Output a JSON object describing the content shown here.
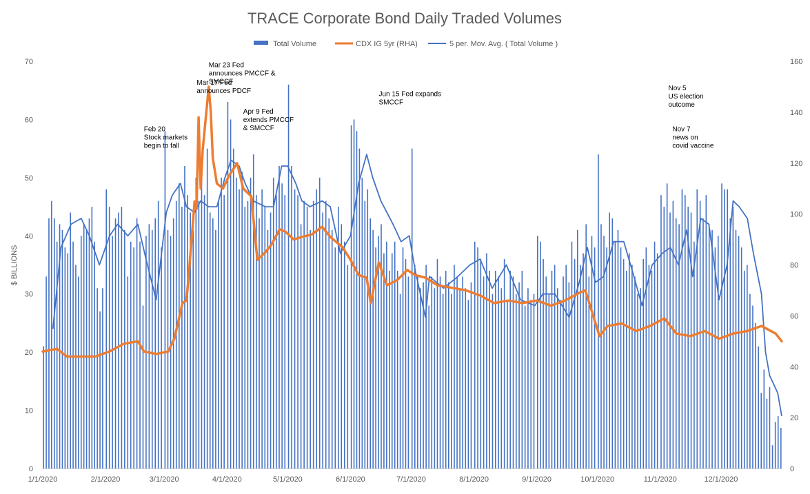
{
  "chart_data": {
    "type": "bar",
    "title": "TRACE Corporate Bond Daily Traded Volumes",
    "ylabel": "$ BILLIONS",
    "ylim": [
      0,
      70
    ],
    "y_ticks": [
      "0",
      "10",
      "20",
      "30",
      "40",
      "50",
      "60",
      "70"
    ],
    "y2lim": [
      0,
      160
    ],
    "y2_ticks": [
      "0",
      "20",
      "40",
      "60",
      "80",
      "100",
      "120",
      "140",
      "160"
    ],
    "x_ticks": [
      "1/1/2020",
      "2/1/2020",
      "3/1/2020",
      "4/1/2020",
      "5/1/2020",
      "6/1/2020",
      "7/1/2020",
      "8/1/2020",
      "9/1/2020",
      "10/1/2020",
      "11/1/2020",
      "12/1/2020"
    ],
    "x_range": [
      "2020-01-01",
      "2020-12-31"
    ],
    "grid": false,
    "legend_position": "top",
    "colors": {
      "bars": "#4472C4",
      "cdx": "#ED7D31",
      "mov_avg": "#4472C4"
    },
    "series": [
      {
        "name": "Total Volume",
        "type": "bar",
        "axis": "left",
        "monthly_values": [
          [
            21,
            33,
            43,
            46,
            43,
            39,
            42,
            41,
            38,
            37,
            44,
            39,
            35,
            33,
            40,
            42,
            41,
            43,
            45,
            39,
            31,
            27,
            31
          ],
          [
            48,
            45,
            40,
            43,
            44,
            45,
            41,
            33,
            39,
            38,
            43,
            39,
            28,
            40,
            42,
            41,
            43,
            46,
            38
          ],
          [
            58,
            41,
            40,
            43,
            46,
            49,
            45,
            52,
            47,
            44,
            41,
            50,
            46,
            52,
            47,
            55,
            44,
            43,
            41,
            46,
            50,
            47
          ],
          [
            63,
            60,
            55,
            50,
            48,
            51,
            45,
            46,
            50,
            54,
            47,
            43,
            48,
            45,
            41,
            44,
            50,
            47,
            52,
            49,
            47
          ],
          [
            66,
            52,
            48,
            47,
            42,
            46,
            45,
            41,
            46,
            48,
            50,
            44,
            46,
            43,
            41,
            38,
            45,
            42,
            39,
            35
          ],
          [
            59,
            60,
            58,
            55,
            50,
            46,
            48,
            43,
            41,
            38,
            40,
            42,
            37,
            39,
            34,
            37,
            39,
            34,
            30,
            38,
            36,
            33
          ],
          [
            55,
            35,
            33,
            31,
            32,
            35,
            28,
            33,
            31,
            36,
            33,
            30,
            34,
            32,
            30,
            35,
            33,
            31,
            33,
            31,
            29,
            32
          ],
          [
            39,
            38,
            36,
            33,
            37,
            34,
            30,
            34,
            33,
            31,
            36,
            29,
            34,
            33,
            30,
            32,
            34,
            28,
            31,
            29,
            30
          ],
          [
            40,
            39,
            36,
            33,
            30,
            34,
            35,
            31,
            29,
            33,
            35,
            32,
            39,
            36,
            41,
            35,
            37,
            42,
            33,
            40,
            38
          ],
          [
            54,
            42,
            40,
            38,
            44,
            43,
            39,
            41,
            38,
            36,
            34,
            37,
            35,
            33,
            30,
            31,
            36,
            38,
            35,
            34,
            39,
            37
          ],
          [
            47,
            45,
            49,
            44,
            46,
            43,
            42,
            48,
            47,
            45,
            44,
            39,
            48,
            46,
            43,
            47,
            42,
            41,
            38,
            40
          ],
          [
            49,
            48,
            48,
            43,
            45,
            41,
            40,
            38,
            34,
            35,
            30,
            28,
            25,
            21,
            13,
            17,
            12,
            14,
            4,
            8,
            9,
            7
          ]
        ]
      },
      {
        "name": "CDX IG 5yr (RHA)",
        "type": "line",
        "axis": "right",
        "points": [
          [
            "2020-01-01",
            46
          ],
          [
            "2020-01-08",
            47
          ],
          [
            "2020-01-13",
            44
          ],
          [
            "2020-01-20",
            44
          ],
          [
            "2020-01-27",
            44
          ],
          [
            "2020-02-03",
            46
          ],
          [
            "2020-02-10",
            49
          ],
          [
            "2020-02-17",
            50
          ],
          [
            "2020-02-20",
            46
          ],
          [
            "2020-02-26",
            45
          ],
          [
            "2020-03-03",
            46
          ],
          [
            "2020-03-06",
            51
          ],
          [
            "2020-03-10",
            65
          ],
          [
            "2020-03-12",
            66
          ],
          [
            "2020-03-13",
            75
          ],
          [
            "2020-03-16",
            105
          ],
          [
            "2020-03-17",
            102
          ],
          [
            "2020-03-18",
            138
          ],
          [
            "2020-03-19",
            110
          ],
          [
            "2020-03-20",
            125
          ],
          [
            "2020-03-23",
            150
          ],
          [
            "2020-03-24",
            140
          ],
          [
            "2020-03-25",
            122
          ],
          [
            "2020-03-27",
            112
          ],
          [
            "2020-03-30",
            110
          ],
          [
            "2020-04-02",
            115
          ],
          [
            "2020-04-06",
            120
          ],
          [
            "2020-04-09",
            110
          ],
          [
            "2020-04-13",
            107
          ],
          [
            "2020-04-16",
            82
          ],
          [
            "2020-04-20",
            85
          ],
          [
            "2020-04-23",
            88
          ],
          [
            "2020-04-27",
            94
          ],
          [
            "2020-04-30",
            93
          ],
          [
            "2020-05-04",
            90
          ],
          [
            "2020-05-08",
            91
          ],
          [
            "2020-05-13",
            92
          ],
          [
            "2020-05-18",
            95
          ],
          [
            "2020-05-22",
            91
          ],
          [
            "2020-05-28",
            87
          ],
          [
            "2020-06-01",
            82
          ],
          [
            "2020-06-05",
            76
          ],
          [
            "2020-06-09",
            75
          ],
          [
            "2020-06-11",
            65
          ],
          [
            "2020-06-15",
            81
          ],
          [
            "2020-06-19",
            72
          ],
          [
            "2020-06-24",
            74
          ],
          [
            "2020-06-29",
            78
          ],
          [
            "2020-07-03",
            76
          ],
          [
            "2020-07-08",
            75
          ],
          [
            "2020-07-14",
            72
          ],
          [
            "2020-07-21",
            71
          ],
          [
            "2020-07-28",
            70
          ],
          [
            "2020-08-04",
            68
          ],
          [
            "2020-08-11",
            65
          ],
          [
            "2020-08-18",
            66
          ],
          [
            "2020-08-25",
            65
          ],
          [
            "2020-09-01",
            66
          ],
          [
            "2020-09-08",
            64
          ],
          [
            "2020-09-15",
            66
          ],
          [
            "2020-09-22",
            69
          ],
          [
            "2020-09-25",
            70
          ],
          [
            "2020-10-02",
            52
          ],
          [
            "2020-10-06",
            56
          ],
          [
            "2020-10-13",
            57
          ],
          [
            "2020-10-20",
            54
          ],
          [
            "2020-10-27",
            56
          ],
          [
            "2020-11-03",
            59
          ],
          [
            "2020-11-06",
            56
          ],
          [
            "2020-11-09",
            53
          ],
          [
            "2020-11-16",
            52
          ],
          [
            "2020-11-23",
            54
          ],
          [
            "2020-11-30",
            51
          ],
          [
            "2020-12-07",
            53
          ],
          [
            "2020-12-14",
            54
          ],
          [
            "2020-12-21",
            56
          ],
          [
            "2020-12-28",
            53
          ],
          [
            "2020-12-31",
            50
          ]
        ]
      },
      {
        "name": "5 per. Mov. Avg. ( Total Volume )",
        "type": "line",
        "axis": "left",
        "points": [
          [
            "2020-01-06",
            24
          ],
          [
            "2020-01-10",
            38
          ],
          [
            "2020-01-15",
            42
          ],
          [
            "2020-01-20",
            43
          ],
          [
            "2020-01-24",
            40
          ],
          [
            "2020-01-29",
            35
          ],
          [
            "2020-02-03",
            40
          ],
          [
            "2020-02-07",
            42
          ],
          [
            "2020-02-12",
            40
          ],
          [
            "2020-02-17",
            42
          ],
          [
            "2020-02-21",
            36
          ],
          [
            "2020-02-26",
            29
          ],
          [
            "2020-03-02",
            44
          ],
          [
            "2020-03-05",
            47
          ],
          [
            "2020-03-09",
            49
          ],
          [
            "2020-03-12",
            45
          ],
          [
            "2020-03-16",
            44
          ],
          [
            "2020-03-19",
            46
          ],
          [
            "2020-03-23",
            45
          ],
          [
            "2020-03-27",
            45
          ],
          [
            "2020-03-31",
            50
          ],
          [
            "2020-04-03",
            53
          ],
          [
            "2020-04-07",
            52
          ],
          [
            "2020-04-10",
            49
          ],
          [
            "2020-04-14",
            46
          ],
          [
            "2020-04-20",
            45
          ],
          [
            "2020-04-24",
            45
          ],
          [
            "2020-04-28",
            52
          ],
          [
            "2020-05-01",
            52
          ],
          [
            "2020-05-05",
            49
          ],
          [
            "2020-05-08",
            46
          ],
          [
            "2020-05-12",
            45
          ],
          [
            "2020-05-18",
            46
          ],
          [
            "2020-05-22",
            45
          ],
          [
            "2020-05-27",
            37
          ],
          [
            "2020-06-01",
            40
          ],
          [
            "2020-06-05",
            49
          ],
          [
            "2020-06-09",
            54
          ],
          [
            "2020-06-12",
            50
          ],
          [
            "2020-06-16",
            46
          ],
          [
            "2020-06-22",
            42
          ],
          [
            "2020-06-26",
            39
          ],
          [
            "2020-06-30",
            40
          ],
          [
            "2020-07-03",
            34
          ],
          [
            "2020-07-08",
            26
          ],
          [
            "2020-07-10",
            33
          ],
          [
            "2020-07-17",
            31
          ],
          [
            "2020-07-24",
            33
          ],
          [
            "2020-07-30",
            35
          ],
          [
            "2020-08-04",
            36
          ],
          [
            "2020-08-10",
            31
          ],
          [
            "2020-08-17",
            35
          ],
          [
            "2020-08-24",
            29
          ],
          [
            "2020-08-31",
            28
          ],
          [
            "2020-09-04",
            30
          ],
          [
            "2020-09-10",
            30
          ],
          [
            "2020-09-17",
            26
          ],
          [
            "2020-09-22",
            32
          ],
          [
            "2020-09-26",
            38
          ],
          [
            "2020-09-30",
            32
          ],
          [
            "2020-10-04",
            33
          ],
          [
            "2020-10-09",
            39
          ],
          [
            "2020-10-14",
            39
          ],
          [
            "2020-10-19",
            33
          ],
          [
            "2020-10-23",
            28
          ],
          [
            "2020-10-28",
            35
          ],
          [
            "2020-11-02",
            37
          ],
          [
            "2020-11-06",
            38
          ],
          [
            "2020-11-10",
            35
          ],
          [
            "2020-11-14",
            41
          ],
          [
            "2020-11-17",
            33
          ],
          [
            "2020-11-21",
            43
          ],
          [
            "2020-11-25",
            42
          ],
          [
            "2020-11-30",
            29
          ],
          [
            "2020-12-04",
            35
          ],
          [
            "2020-12-07",
            46
          ],
          [
            "2020-12-10",
            45
          ],
          [
            "2020-12-14",
            43
          ],
          [
            "2020-12-17",
            37
          ],
          [
            "2020-12-21",
            30
          ],
          [
            "2020-12-23",
            20
          ],
          [
            "2020-12-25",
            16
          ],
          [
            "2020-12-29",
            13
          ],
          [
            "2020-12-31",
            9
          ]
        ]
      }
    ],
    "annotations": [
      {
        "date": "2020-02-20",
        "value": 58,
        "lines": [
          "Feb 20",
          "Stock markets",
          "begin to fall"
        ]
      },
      {
        "date": "2020-03-17",
        "value": 66,
        "lines": [
          "Mar 17 Fed",
          "announces PDCF"
        ]
      },
      {
        "date": "2020-03-23",
        "value": 69,
        "lines": [
          "Mar 23 Fed",
          "announces PMCCF &",
          "SMCCF"
        ]
      },
      {
        "date": "2020-04-09",
        "value": 61,
        "lines": [
          "Apr 9 Fed",
          "extends PMCCF",
          "& SMCCF"
        ]
      },
      {
        "date": "2020-06-15",
        "value": 64,
        "lines": [
          "Jun 15 Fed expands",
          "SMCCF"
        ]
      },
      {
        "date": "2020-11-05",
        "value": 65,
        "lines": [
          "Nov 5",
          "US election",
          "outcome"
        ]
      },
      {
        "date": "2020-11-07",
        "value": 58,
        "lines": [
          "Nov 7",
          "news on",
          "covid vaccine"
        ]
      }
    ]
  }
}
